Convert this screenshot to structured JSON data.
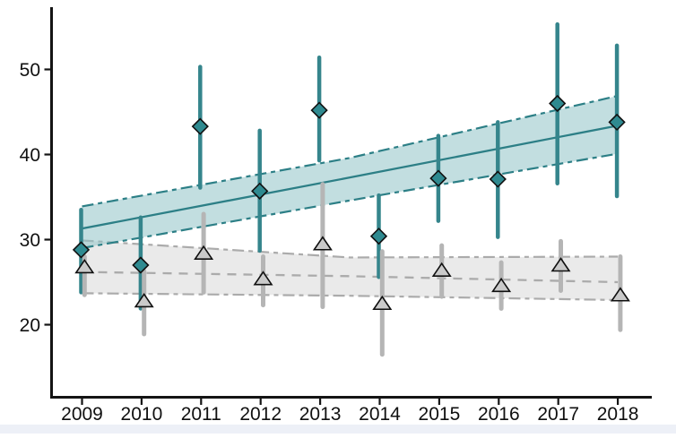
{
  "chart_data": {
    "type": "scatter",
    "title": "",
    "xlabel": "",
    "ylabel": "",
    "grid": false,
    "legend": "none",
    "x": [
      2009,
      2010,
      2011,
      2012,
      2013,
      2014,
      2015,
      2016,
      2017,
      2018
    ],
    "x_ticks": [
      "2009",
      "2010",
      "2011",
      "2012",
      "2013",
      "2014",
      "2015",
      "2016",
      "2017",
      "2018"
    ],
    "y_ticks": [
      "20",
      "30",
      "40",
      "50"
    ],
    "y_tick_values": [
      20,
      30,
      40,
      50
    ],
    "ylim": [
      13.5,
      57.5
    ],
    "series": [
      {
        "id": "gray-triangle-series",
        "marker": "triangle",
        "line_color": "#ababab",
        "bar_color": "#b5b5b5",
        "marker_fill": "#cacaca",
        "marker_stroke": "#101010",
        "band_fill": "#e9e9e9",
        "band_opacity": 0.95,
        "center_style": "dashed",
        "values": [
          26.8,
          22.8,
          28.4,
          25.4,
          29.5,
          22.5,
          26.4,
          24.6,
          27.0,
          23.5
        ],
        "ci_low": [
          23.5,
          18.9,
          23.8,
          22.3,
          22.1,
          16.5,
          23.3,
          21.9,
          24.0,
          19.4
        ],
        "ci_high": [
          28.0,
          26.3,
          33.0,
          28.0,
          36.5,
          28.6,
          29.3,
          27.3,
          29.8,
          28.0
        ],
        "trend": {
          "x": [
            2009,
            2013.5,
            2018
          ],
          "center": [
            26.2,
            25.7,
            25.0
          ],
          "upper": [
            29.9,
            27.9,
            28.0
          ],
          "lower": [
            23.7,
            23.4,
            22.9
          ]
        }
      },
      {
        "id": "teal-diamond-series",
        "marker": "diamond",
        "line_color": "#2c7f86",
        "bar_color": "#35858c",
        "marker_fill": "#2f8a90",
        "marker_stroke": "#101010",
        "band_fill": "#8fc3c6",
        "band_opacity": 0.55,
        "center_style": "solid",
        "values": [
          28.8,
          27.0,
          43.3,
          35.7,
          45.2,
          30.4,
          37.2,
          37.1,
          46.0,
          43.8
        ],
        "ci_low": [
          23.8,
          21.9,
          36.1,
          28.7,
          39.3,
          25.6,
          32.2,
          30.3,
          36.6,
          35.1
        ],
        "ci_high": [
          33.5,
          32.6,
          50.3,
          42.8,
          51.4,
          35.2,
          42.2,
          43.8,
          55.3,
          52.8
        ],
        "trend": {
          "x": [
            2009,
            2013.5,
            2018
          ],
          "center": [
            31.3,
            37.3,
            43.4
          ],
          "upper": [
            33.9,
            39.6,
            46.9
          ],
          "lower": [
            29.0,
            34.6,
            40.1
          ]
        }
      }
    ],
    "axis_color": "#141414"
  }
}
